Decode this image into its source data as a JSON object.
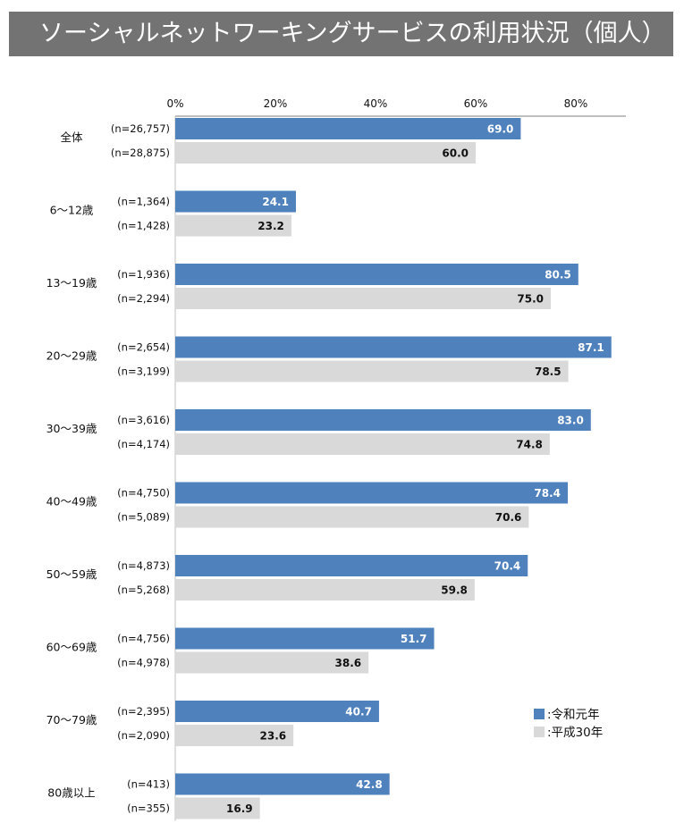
{
  "title": "ソーシャルネットワーキングサービスの利用状況（個人）",
  "chart_data": {
    "type": "bar",
    "orientation": "horizontal",
    "title": "ソーシャルネットワーキングサービスの利用状況（個人）",
    "xlim": [
      0,
      90
    ],
    "ticks": [
      "0%",
      "20%",
      "40%",
      "60%",
      "80%"
    ],
    "tick_values": [
      0,
      20,
      40,
      60,
      80
    ],
    "legend_position": "bottom-right",
    "categories": [
      "全体",
      "6〜12歳",
      "13〜19歳",
      "20〜29歳",
      "30〜39歳",
      "40〜49歳",
      "50〜59歳",
      "60〜69歳",
      "70〜79歳",
      "80歳以上"
    ],
    "series": [
      {
        "name": "令和元年",
        "color": "#4f81bd",
        "values": [
          69.0,
          24.1,
          80.5,
          87.1,
          83.0,
          78.4,
          70.4,
          51.7,
          40.7,
          42.8
        ],
        "value_labels": [
          "69.0",
          "24.1",
          "80.5",
          "87.1",
          "83.0",
          "78.4",
          "70.4",
          "51.7",
          "40.7",
          "42.8"
        ],
        "n": [
          "(n=26,757)",
          "(n=1,364)",
          "(n=1,936)",
          "(n=2,654)",
          "(n=3,616)",
          "(n=4,750)",
          "(n=4,873)",
          "(n=4,756)",
          "(n=2,395)",
          "(n=413)"
        ]
      },
      {
        "name": "平成30年",
        "color": "#d9d9d9",
        "values": [
          60.0,
          23.2,
          75.0,
          78.5,
          74.8,
          70.6,
          59.8,
          38.6,
          23.6,
          16.9
        ],
        "value_labels": [
          "60.0",
          "23.2",
          "75.0",
          "78.5",
          "74.8",
          "70.6",
          "59.8",
          "38.6",
          "23.6",
          "16.9"
        ],
        "n": [
          "(n=28,875)",
          "(n=1,428)",
          "(n=2,294)",
          "(n=3,199)",
          "(n=4,174)",
          "(n=5,089)",
          "(n=5,268)",
          "(n=4,978)",
          "(n=2,090)",
          "(n=355)"
        ]
      }
    ],
    "legend": [
      {
        "label": ":令和元年",
        "color": "#4f81bd"
      },
      {
        "label": ":平成30年",
        "color": "#d9d9d9"
      }
    ]
  }
}
